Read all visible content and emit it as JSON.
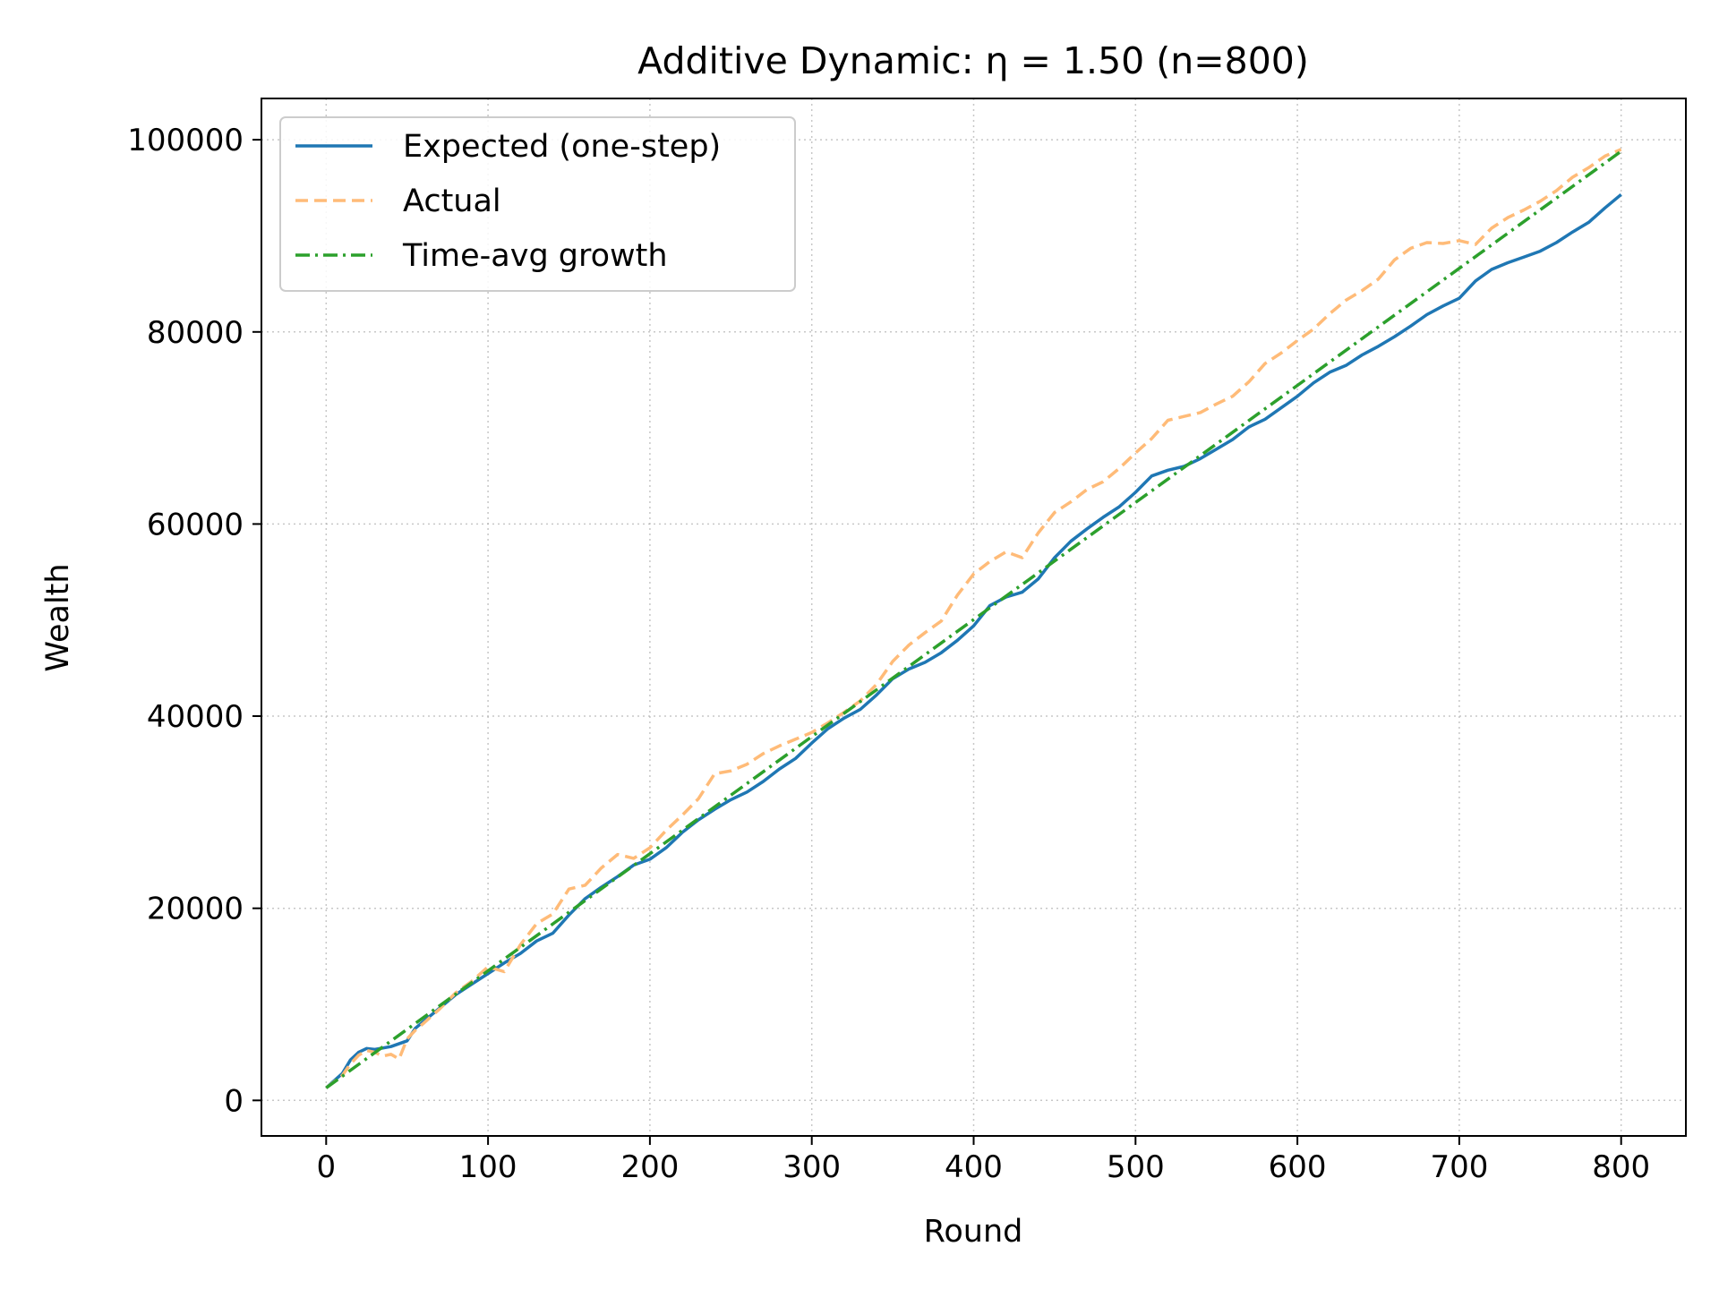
{
  "chart_data": {
    "type": "line",
    "title": "Additive Dynamic: η = 1.50 (n=800)",
    "xlabel": "Round",
    "ylabel": "Wealth",
    "xlim": [
      -40,
      840
    ],
    "ylim": [
      -3700,
      104300
    ],
    "xticks": [
      0,
      100,
      200,
      300,
      400,
      500,
      600,
      700,
      800
    ],
    "xtick_labels": [
      "0",
      "100",
      "200",
      "300",
      "400",
      "500",
      "600",
      "700",
      "800"
    ],
    "yticks": [
      0,
      20000,
      40000,
      60000,
      80000,
      100000
    ],
    "ytick_labels": [
      "0",
      "20000",
      "40000",
      "60000",
      "80000",
      "100000"
    ],
    "grid": true,
    "legend_position": "upper-left",
    "series": [
      {
        "name": "Expected (one-step)",
        "color": "#1f77b4",
        "style": "solid",
        "x": [
          0,
          10,
          15,
          20,
          25,
          30,
          40,
          50,
          55,
          60,
          70,
          80,
          90,
          100,
          110,
          120,
          130,
          140,
          150,
          160,
          170,
          180,
          190,
          200,
          210,
          220,
          230,
          240,
          250,
          260,
          270,
          280,
          290,
          300,
          310,
          320,
          330,
          340,
          350,
          360,
          370,
          380,
          390,
          400,
          410,
          420,
          430,
          440,
          450,
          460,
          470,
          480,
          490,
          500,
          510,
          520,
          530,
          540,
          550,
          560,
          570,
          580,
          590,
          600,
          610,
          620,
          630,
          640,
          650,
          660,
          670,
          680,
          690,
          700,
          710,
          720,
          730,
          740,
          750,
          760,
          770,
          780,
          790,
          800
        ],
        "y": [
          1300,
          2800,
          4200,
          5000,
          5400,
          5300,
          5600,
          6200,
          7500,
          8200,
          9600,
          11000,
          12100,
          13200,
          14300,
          15300,
          16600,
          17400,
          19300,
          21000,
          22200,
          23300,
          24500,
          25100,
          26300,
          27900,
          29200,
          30300,
          31300,
          32100,
          33200,
          34500,
          35600,
          37200,
          38700,
          39800,
          40700,
          42200,
          43900,
          44900,
          45600,
          46600,
          47900,
          49400,
          51500,
          52400,
          52900,
          54300,
          56500,
          58200,
          59500,
          60700,
          61800,
          63300,
          65000,
          65600,
          66000,
          66800,
          67800,
          68800,
          70100,
          70900,
          72100,
          73300,
          74700,
          75800,
          76500,
          77600,
          78500,
          79500,
          80600,
          81800,
          82700,
          83500,
          85300,
          86500,
          87200,
          87800,
          88400,
          89300,
          90400,
          91400,
          92900,
          94300
        ]
      },
      {
        "name": "Actual",
        "color": "#ffbb78",
        "style": "dashed",
        "x": [
          0,
          10,
          15,
          20,
          25,
          30,
          35,
          40,
          45,
          50,
          55,
          60,
          70,
          80,
          90,
          100,
          110,
          120,
          130,
          140,
          150,
          160,
          170,
          180,
          190,
          200,
          210,
          220,
          230,
          240,
          250,
          260,
          270,
          280,
          290,
          300,
          310,
          320,
          330,
          340,
          350,
          360,
          370,
          380,
          390,
          400,
          410,
          420,
          430,
          440,
          450,
          460,
          470,
          480,
          490,
          500,
          510,
          520,
          530,
          540,
          550,
          560,
          570,
          580,
          590,
          600,
          610,
          620,
          630,
          640,
          650,
          660,
          670,
          680,
          690,
          700,
          710,
          720,
          730,
          740,
          750,
          760,
          770,
          780,
          790,
          800
        ],
        "y": [
          1300,
          2600,
          3800,
          4700,
          5200,
          5000,
          4600,
          4800,
          4300,
          6400,
          7300,
          8000,
          9500,
          11200,
          12400,
          13900,
          13400,
          16200,
          18400,
          19400,
          22000,
          22400,
          24200,
          25600,
          25200,
          26300,
          28100,
          29700,
          31400,
          34000,
          34300,
          35000,
          36100,
          36900,
          37600,
          38300,
          39300,
          40400,
          41600,
          43300,
          45700,
          47400,
          48700,
          49900,
          52600,
          54800,
          56100,
          57100,
          56500,
          59100,
          61200,
          62300,
          63600,
          64400,
          65800,
          67400,
          68900,
          70800,
          71200,
          71600,
          72500,
          73300,
          74800,
          76700,
          77800,
          79100,
          80300,
          81900,
          83300,
          84300,
          85500,
          87500,
          88700,
          89300,
          89200,
          89500,
          89100,
          90800,
          91900,
          92700,
          93600,
          94700,
          96100,
          97100,
          98300,
          99000
        ]
      },
      {
        "name": "Time-avg growth",
        "color": "#2ca02c",
        "style": "dashdot",
        "x": [
          0,
          800
        ],
        "y": [
          1300,
          98800
        ]
      }
    ]
  }
}
